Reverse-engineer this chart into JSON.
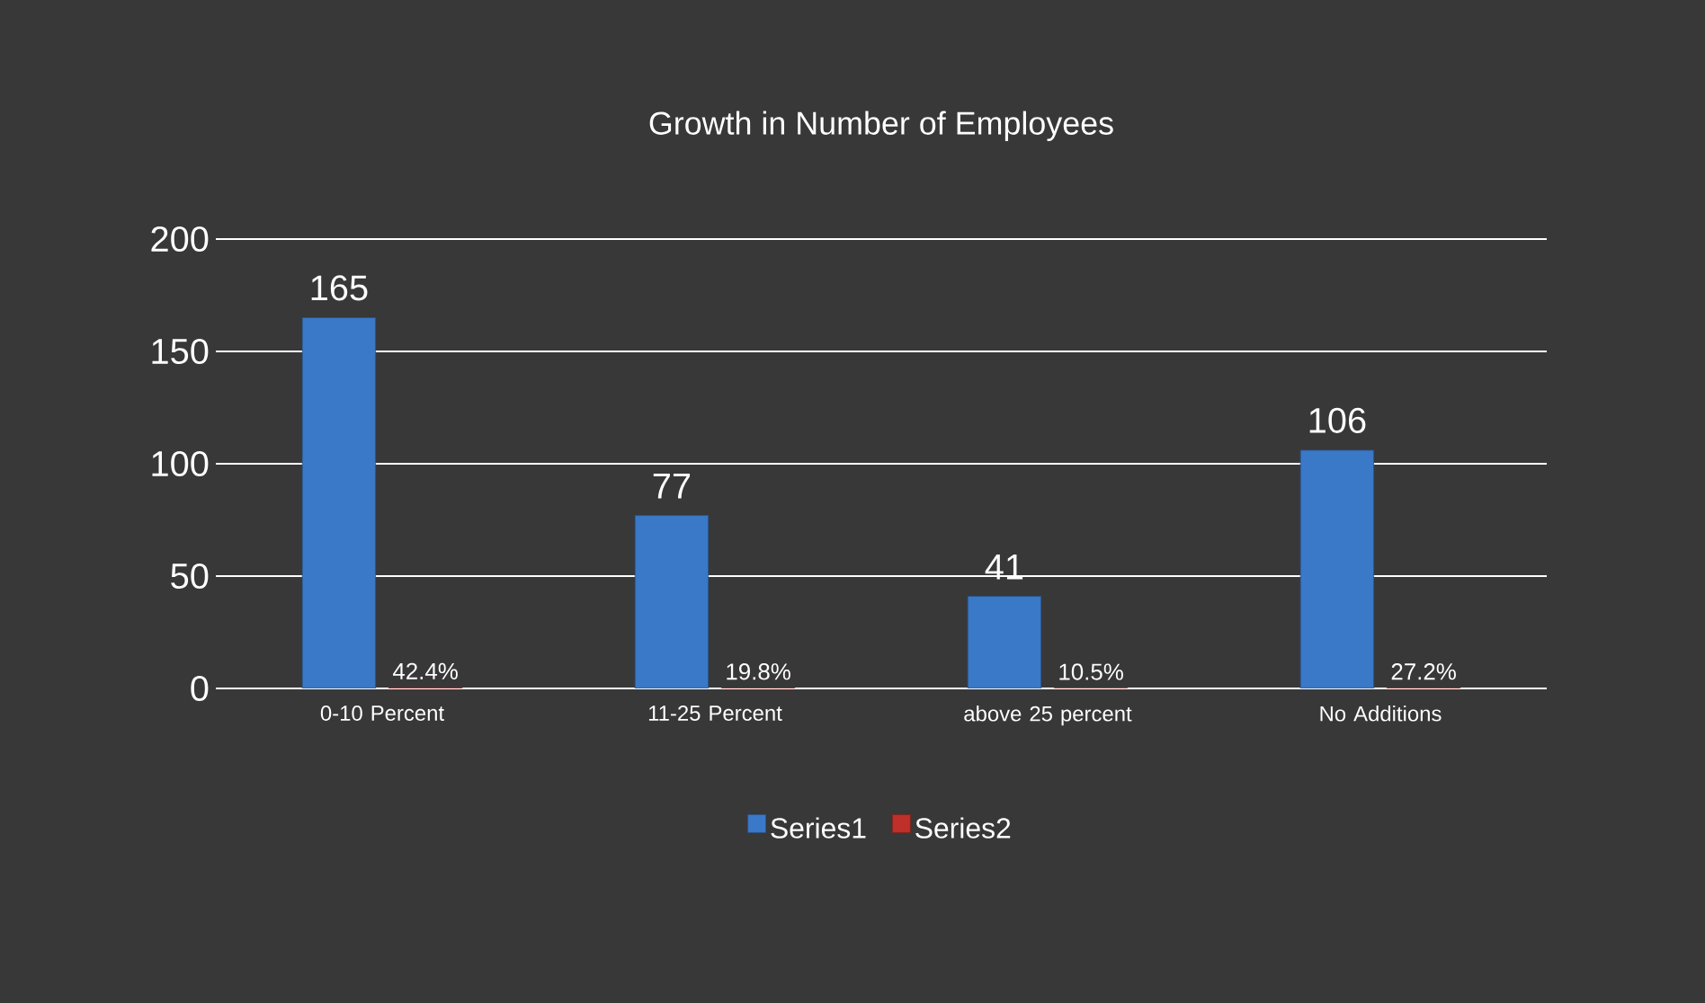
{
  "chart_data": {
    "type": "bar",
    "title": "Growth in Number of Employees",
    "categories": [
      "0-10 Percent",
      "11-25 Percent",
      "above 25 percent",
      "No Additions"
    ],
    "series": [
      {
        "name": "Series1",
        "color": "#3a78c8",
        "values": [
          165,
          77,
          41,
          106
        ],
        "value_labels": [
          "165",
          "77",
          "41",
          "106"
        ]
      },
      {
        "name": "Series2",
        "color": "#c0302a",
        "values": [
          0.424,
          0.198,
          0.105,
          0.272
        ],
        "value_labels": [
          "42.4%",
          "19.8%",
          "10.5%",
          "27.2%"
        ]
      }
    ],
    "ylim": [
      0,
      200
    ],
    "yticks": [
      0,
      50,
      100,
      150,
      200
    ],
    "grid": "y",
    "legend": "bottom"
  }
}
